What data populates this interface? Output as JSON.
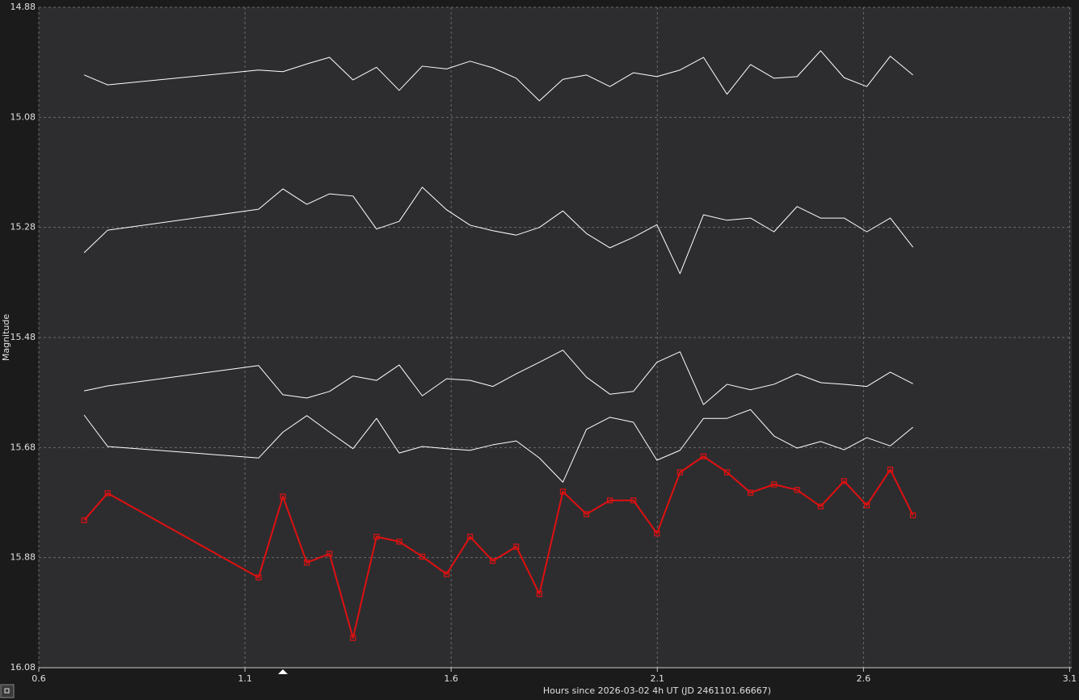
{
  "chart_data": {
    "type": "line",
    "xlabel": "Hours since 2026-03-02 4h UT (JD 2461101.66667)",
    "ylabel": "Magnitude",
    "xlim": [
      0.6,
      3.105
    ],
    "ylim": [
      14.88,
      16.08
    ],
    "y_inverted": true,
    "xticks": [
      0.6,
      1.1,
      1.6,
      2.1,
      2.6,
      3.1
    ],
    "yticks": [
      14.88,
      15.08,
      15.28,
      15.48,
      15.68,
      15.88,
      16.08
    ],
    "grid": true,
    "x": [
      0.71,
      0.767,
      1.133,
      1.192,
      1.25,
      1.305,
      1.362,
      1.419,
      1.474,
      1.53,
      1.589,
      1.646,
      1.701,
      1.758,
      1.814,
      1.871,
      1.928,
      1.985,
      2.042,
      2.099,
      2.155,
      2.212,
      2.269,
      2.326,
      2.383,
      2.439,
      2.496,
      2.553,
      2.608,
      2.665,
      2.72
    ],
    "series": [
      {
        "color": "#ffffff",
        "width": 1,
        "marker": "none",
        "values": [
          15.003,
          15.021,
          14.994,
          14.997,
          14.983,
          14.971,
          15.012,
          14.989,
          15.031,
          14.987,
          14.992,
          14.978,
          14.99,
          15.009,
          15.05,
          15.011,
          15.003,
          15.024,
          14.999,
          15.006,
          14.994,
          14.971,
          15.038,
          14.984,
          15.009,
          15.006,
          14.959,
          15.008,
          15.024,
          14.969,
          15.003
        ]
      },
      {
        "color": "#ffffff",
        "width": 1,
        "marker": "none",
        "values": [
          15.326,
          15.285,
          15.247,
          15.21,
          15.238,
          15.219,
          15.223,
          15.283,
          15.269,
          15.207,
          15.248,
          15.276,
          15.286,
          15.294,
          15.28,
          15.25,
          15.291,
          15.317,
          15.298,
          15.275,
          15.364,
          15.257,
          15.267,
          15.263,
          15.288,
          15.242,
          15.263,
          15.263,
          15.288,
          15.263,
          15.316
        ]
      },
      {
        "color": "#ffffff",
        "width": 1,
        "marker": "none",
        "values": [
          15.577,
          15.568,
          15.531,
          15.584,
          15.59,
          15.578,
          15.55,
          15.558,
          15.53,
          15.586,
          15.555,
          15.558,
          15.569,
          15.546,
          15.525,
          15.503,
          15.552,
          15.583,
          15.578,
          15.525,
          15.506,
          15.602,
          15.565,
          15.575,
          15.565,
          15.546,
          15.562,
          15.565,
          15.569,
          15.543,
          15.564
        ]
      },
      {
        "color": "#ffffff",
        "width": 1,
        "marker": "none",
        "values": [
          15.621,
          15.678,
          15.699,
          15.652,
          15.622,
          15.652,
          15.682,
          15.627,
          15.69,
          15.678,
          15.682,
          15.685,
          15.675,
          15.668,
          15.699,
          15.743,
          15.647,
          15.625,
          15.634,
          15.703,
          15.685,
          15.627,
          15.627,
          15.611,
          15.659,
          15.681,
          15.669,
          15.684,
          15.662,
          15.677,
          15.643
        ]
      },
      {
        "color": "#e01010",
        "width": 2,
        "marker": "square",
        "values": [
          15.812,
          15.763,
          15.916,
          15.769,
          15.889,
          15.873,
          16.026,
          15.842,
          15.851,
          15.878,
          15.91,
          15.842,
          15.886,
          15.86,
          15.946,
          15.76,
          15.801,
          15.776,
          15.776,
          15.836,
          15.725,
          15.696,
          15.725,
          15.762,
          15.747,
          15.757,
          15.787,
          15.741,
          15.785,
          15.72,
          15.803
        ]
      }
    ]
  }
}
